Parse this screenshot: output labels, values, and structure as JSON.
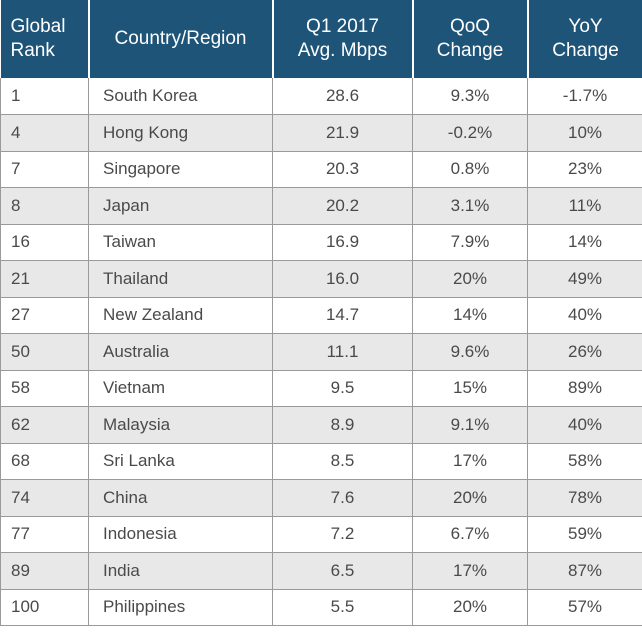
{
  "table": {
    "headers": {
      "rank": [
        "Global",
        "Rank"
      ],
      "country": [
        "Country/Region"
      ],
      "mbps": [
        "Q1 2017",
        "Avg. Mbps"
      ],
      "qoq": [
        "QoQ",
        "Change"
      ],
      "yoy": [
        "YoY",
        "Change"
      ]
    },
    "rows": [
      {
        "rank": "1",
        "country": "South Korea",
        "mbps": "28.6",
        "qoq": "9.3%",
        "yoy": "-1.7%"
      },
      {
        "rank": "4",
        "country": "Hong Kong",
        "mbps": "21.9",
        "qoq": "-0.2%",
        "yoy": "10%"
      },
      {
        "rank": "7",
        "country": "Singapore",
        "mbps": "20.3",
        "qoq": "0.8%",
        "yoy": "23%"
      },
      {
        "rank": "8",
        "country": "Japan",
        "mbps": "20.2",
        "qoq": "3.1%",
        "yoy": "11%"
      },
      {
        "rank": "16",
        "country": "Taiwan",
        "mbps": "16.9",
        "qoq": "7.9%",
        "yoy": "14%"
      },
      {
        "rank": "21",
        "country": "Thailand",
        "mbps": "16.0",
        "qoq": "20%",
        "yoy": "49%"
      },
      {
        "rank": "27",
        "country": "New Zealand",
        "mbps": "14.7",
        "qoq": "14%",
        "yoy": "40%"
      },
      {
        "rank": "50",
        "country": "Australia",
        "mbps": "11.1",
        "qoq": "9.6%",
        "yoy": "26%"
      },
      {
        "rank": "58",
        "country": "Vietnam",
        "mbps": "9.5",
        "qoq": "15%",
        "yoy": "89%"
      },
      {
        "rank": "62",
        "country": "Malaysia",
        "mbps": "8.9",
        "qoq": "9.1%",
        "yoy": "40%"
      },
      {
        "rank": "68",
        "country": "Sri Lanka",
        "mbps": "8.5",
        "qoq": "17%",
        "yoy": "58%"
      },
      {
        "rank": "74",
        "country": "China",
        "mbps": "7.6",
        "qoq": "20%",
        "yoy": "78%"
      },
      {
        "rank": "77",
        "country": "Indonesia",
        "mbps": "7.2",
        "qoq": "6.7%",
        "yoy": "59%"
      },
      {
        "rank": "89",
        "country": "India",
        "mbps": "6.5",
        "qoq": "17%",
        "yoy": "87%"
      },
      {
        "rank": "100",
        "country": "Philippines",
        "mbps": "5.5",
        "qoq": "20%",
        "yoy": "57%"
      }
    ]
  },
  "colors": {
    "header_bg": "#1e5478",
    "header_text": "#ffffff",
    "row_alt_bg": "#e8e8e8",
    "grid_line": "#9a9a9a"
  }
}
